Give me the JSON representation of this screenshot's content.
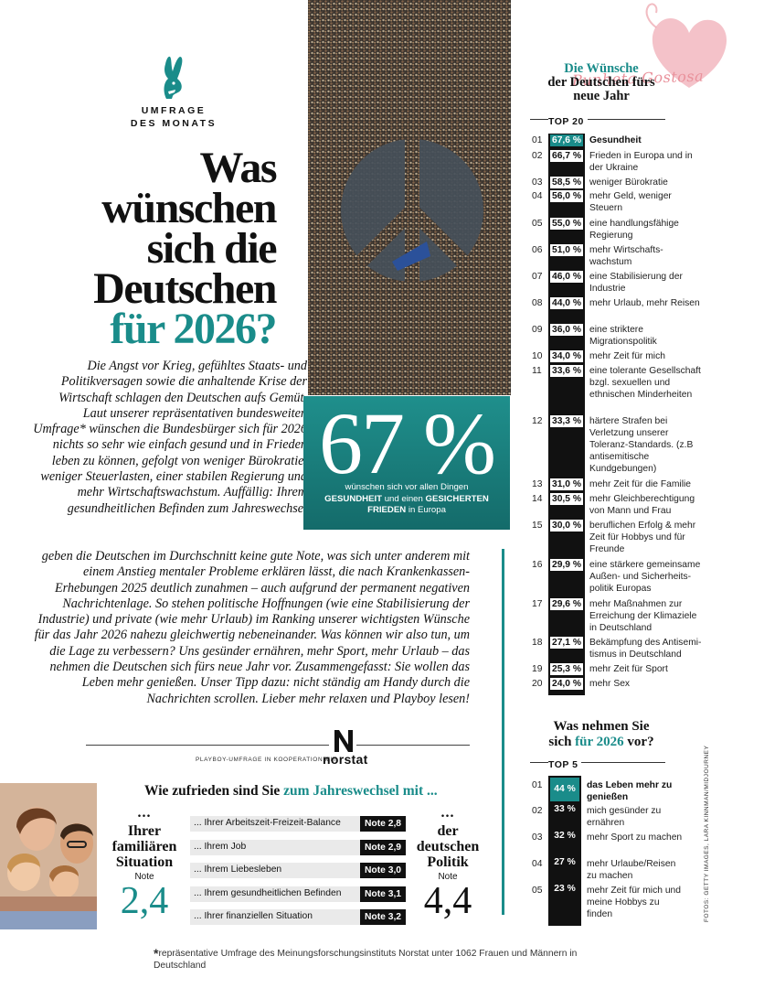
{
  "header": {
    "kicker_line1": "UMFRAGE",
    "kicker_line2": "DES MONATS",
    "headline": [
      "Was",
      "wünschen",
      "sich die",
      "Deutschen"
    ],
    "headline_accent": "für 2026?",
    "accent_color": "#1a8c8a",
    "logo_icon": "bunny-icon"
  },
  "intro": {
    "part1": "Die Angst vor Krieg, gefühltes Staats- und Politikversagen sowie die anhaltende Krise der Wirtschaft schlagen den Deutschen aufs Gemüt. Laut unserer repräsentativen bundesweiten Umfrage* wünschen die Bundesbürger sich für 2026 nichts so sehr wie einfach gesund und in Frieden leben zu können, gefolgt von weniger Bürokratie, weniger Steuerlasten, einer stabilen Regierung und mehr Wirtschaftswachstum. Auffällig: Ihrem gesundheitlichen Befinden zum Jahreswechsel",
    "part2": "geben die Deutschen im Durchschnitt keine gute Note, was sich unter anderem mit einem Anstieg mentaler Probleme erklären lässt, die nach Krankenkassen-Erhebungen 2025 deutlich zunahmen – auch aufgrund der permanent negativen Nachrichtenlage. So stehen politische Hoffnungen (wie eine Stabilisierung der Industrie) und private (wie mehr Urlaub) im Ranking unserer wichtigsten Wünsche für das Jahr 2026 nahezu gleichwertig nebeneinander. Was können wir also tun, um die Lage zu verbessern? Uns gesünder ernähren, mehr Sport, mehr Urlaub – das nehmen die Deutschen sich fürs neue Jahr vor. Zusammengefasst: Sie wollen das Leben mehr genießen. Unser Tipp dazu: nicht ständig am Handy durch die Nachrichten scrollen. Lieber mehr relaxen und Playboy lesen!"
  },
  "stat": {
    "value": "67 %",
    "line1": "wünschen sich vor allen Dingen",
    "bold1": "GESUNDHEIT",
    "mid": " und einen ",
    "bold2": "GESICHERTEN",
    "bold3": "FRIEDEN",
    "tail": " in Europa"
  },
  "wishes": {
    "title_pre": "Die Wünsche",
    "title_line2": "der Deutschen fürs",
    "title_line3": "neue Jahr",
    "top_label": "TOP 20",
    "items": [
      {
        "rank": "01",
        "pct": "67,6 %",
        "text": "Gesundheit"
      },
      {
        "rank": "02",
        "pct": "66,7 %",
        "text": "Frieden in Europa und in der Ukraine"
      },
      {
        "rank": "03",
        "pct": "58,5 %",
        "text": "weniger Bürokratie"
      },
      {
        "rank": "04",
        "pct": "56,0 %",
        "text": "mehr Geld, weniger Steuern"
      },
      {
        "rank": "05",
        "pct": "55,0 %",
        "text": "eine handlungsfähige Regierung"
      },
      {
        "rank": "06",
        "pct": "51,0 %",
        "text": "mehr Wirtschafts-wachstum"
      },
      {
        "rank": "07",
        "pct": "46,0 %",
        "text": "eine Stabilisierung der Industrie"
      },
      {
        "rank": "08",
        "pct": "44,0 %",
        "text": "mehr Urlaub, mehr Reisen"
      },
      {
        "rank": "09",
        "pct": "36,0 %",
        "text": "eine striktere Migrationspolitik"
      },
      {
        "rank": "10",
        "pct": "34,0 %",
        "text": "mehr Zeit für mich"
      },
      {
        "rank": "11",
        "pct": "33,6 %",
        "text": "eine tolerante Gesellschaft bzgl. sexuellen und ethnischen Minderheiten"
      },
      {
        "rank": "12",
        "pct": "33,3 %",
        "text": "härtere Strafen bei Verletzung unserer Toleranz-Standards. (z.B antisemitische Kundgebungen)"
      },
      {
        "rank": "13",
        "pct": "31,0 %",
        "text": "mehr Zeit für die Familie"
      },
      {
        "rank": "14",
        "pct": "30,5 %",
        "text": "mehr Gleichberechtigung von Mann und Frau"
      },
      {
        "rank": "15",
        "pct": "30,0 %",
        "text": "beruflichen Erfolg & mehr Zeit für Hobbys und für Freunde"
      },
      {
        "rank": "16",
        "pct": "29,9 %",
        "text": "eine stärkere gemeinsame Außen- und Sicherheits-politik Europas"
      },
      {
        "rank": "17",
        "pct": "29,6 %",
        "text": "mehr Maßnahmen zur Erreichung der Klimaziele in Deutschland"
      },
      {
        "rank": "18",
        "pct": "27,1 %",
        "text": "Bekämpfung des Antisemi-tismus in Deutschland"
      },
      {
        "rank": "19",
        "pct": "25,3 %",
        "text": "mehr Zeit für Sport"
      },
      {
        "rank": "20",
        "pct": "24,0 %",
        "text": "mehr Sex"
      }
    ]
  },
  "resolutions": {
    "title_line1": "Was nehmen Sie",
    "title_pre": "sich ",
    "title_accent": "für 2026",
    "title_post": " vor?",
    "top_label": "TOP 5",
    "items": [
      {
        "rank": "01",
        "pct": "44 %",
        "text": "das Leben mehr zu genießen"
      },
      {
        "rank": "02",
        "pct": "33 %",
        "text": "mich gesünder zu ernähren"
      },
      {
        "rank": "03",
        "pct": "32 %",
        "text": "mehr Sport zu machen"
      },
      {
        "rank": "04",
        "pct": "27 %",
        "text": "mehr Urlaube/Reisen zu machen"
      },
      {
        "rank": "05",
        "pct": "23 %",
        "text": "mehr Zeit für mich und meine Hobbys zu finden"
      }
    ]
  },
  "credit": "FOTOS: GETTY IMAGES, LARA KINNMAN/MIDJOURNEY",
  "norstat": {
    "cooperation": "PLAYBOY-UMFRAGE IN KOOPERATION MIT",
    "brand": "norstat",
    "logo_icon": "norstat-n-icon"
  },
  "satisfaction": {
    "title_pre": "Wie zufrieden sind Sie ",
    "title_accent": "zum Jahreswechsel mit ...",
    "left": {
      "dots": "...",
      "label": "Ihrer familiären Situation",
      "note": "Note",
      "value": "2,4"
    },
    "right": {
      "dots": "...",
      "label": "der deutschen Politik",
      "note": "Note",
      "value": "4,4"
    },
    "items": [
      {
        "q": "... Ihrer Arbeitszeit-Freizeit-Balance",
        "note": "Note 2,8"
      },
      {
        "q": "... Ihrem Job",
        "note": "Note 2,9"
      },
      {
        "q": "... Ihrem Liebesleben",
        "note": "Note 3,0"
      },
      {
        "q": "... Ihrem gesundheitlichen Befinden",
        "note": "Note 3,1"
      },
      {
        "q": "... Ihrer finanziellen Situation",
        "note": "Note 3,2"
      }
    ]
  },
  "footnote": {
    "star": "*",
    "text": "repräsentative Umfrage des Meinungsforschungsinstituts Norstat unter 1062 Frauen und Männern in Deutschland"
  },
  "watermark": {
    "text": "Punheta Gostosa",
    "color": "#e9919b"
  }
}
